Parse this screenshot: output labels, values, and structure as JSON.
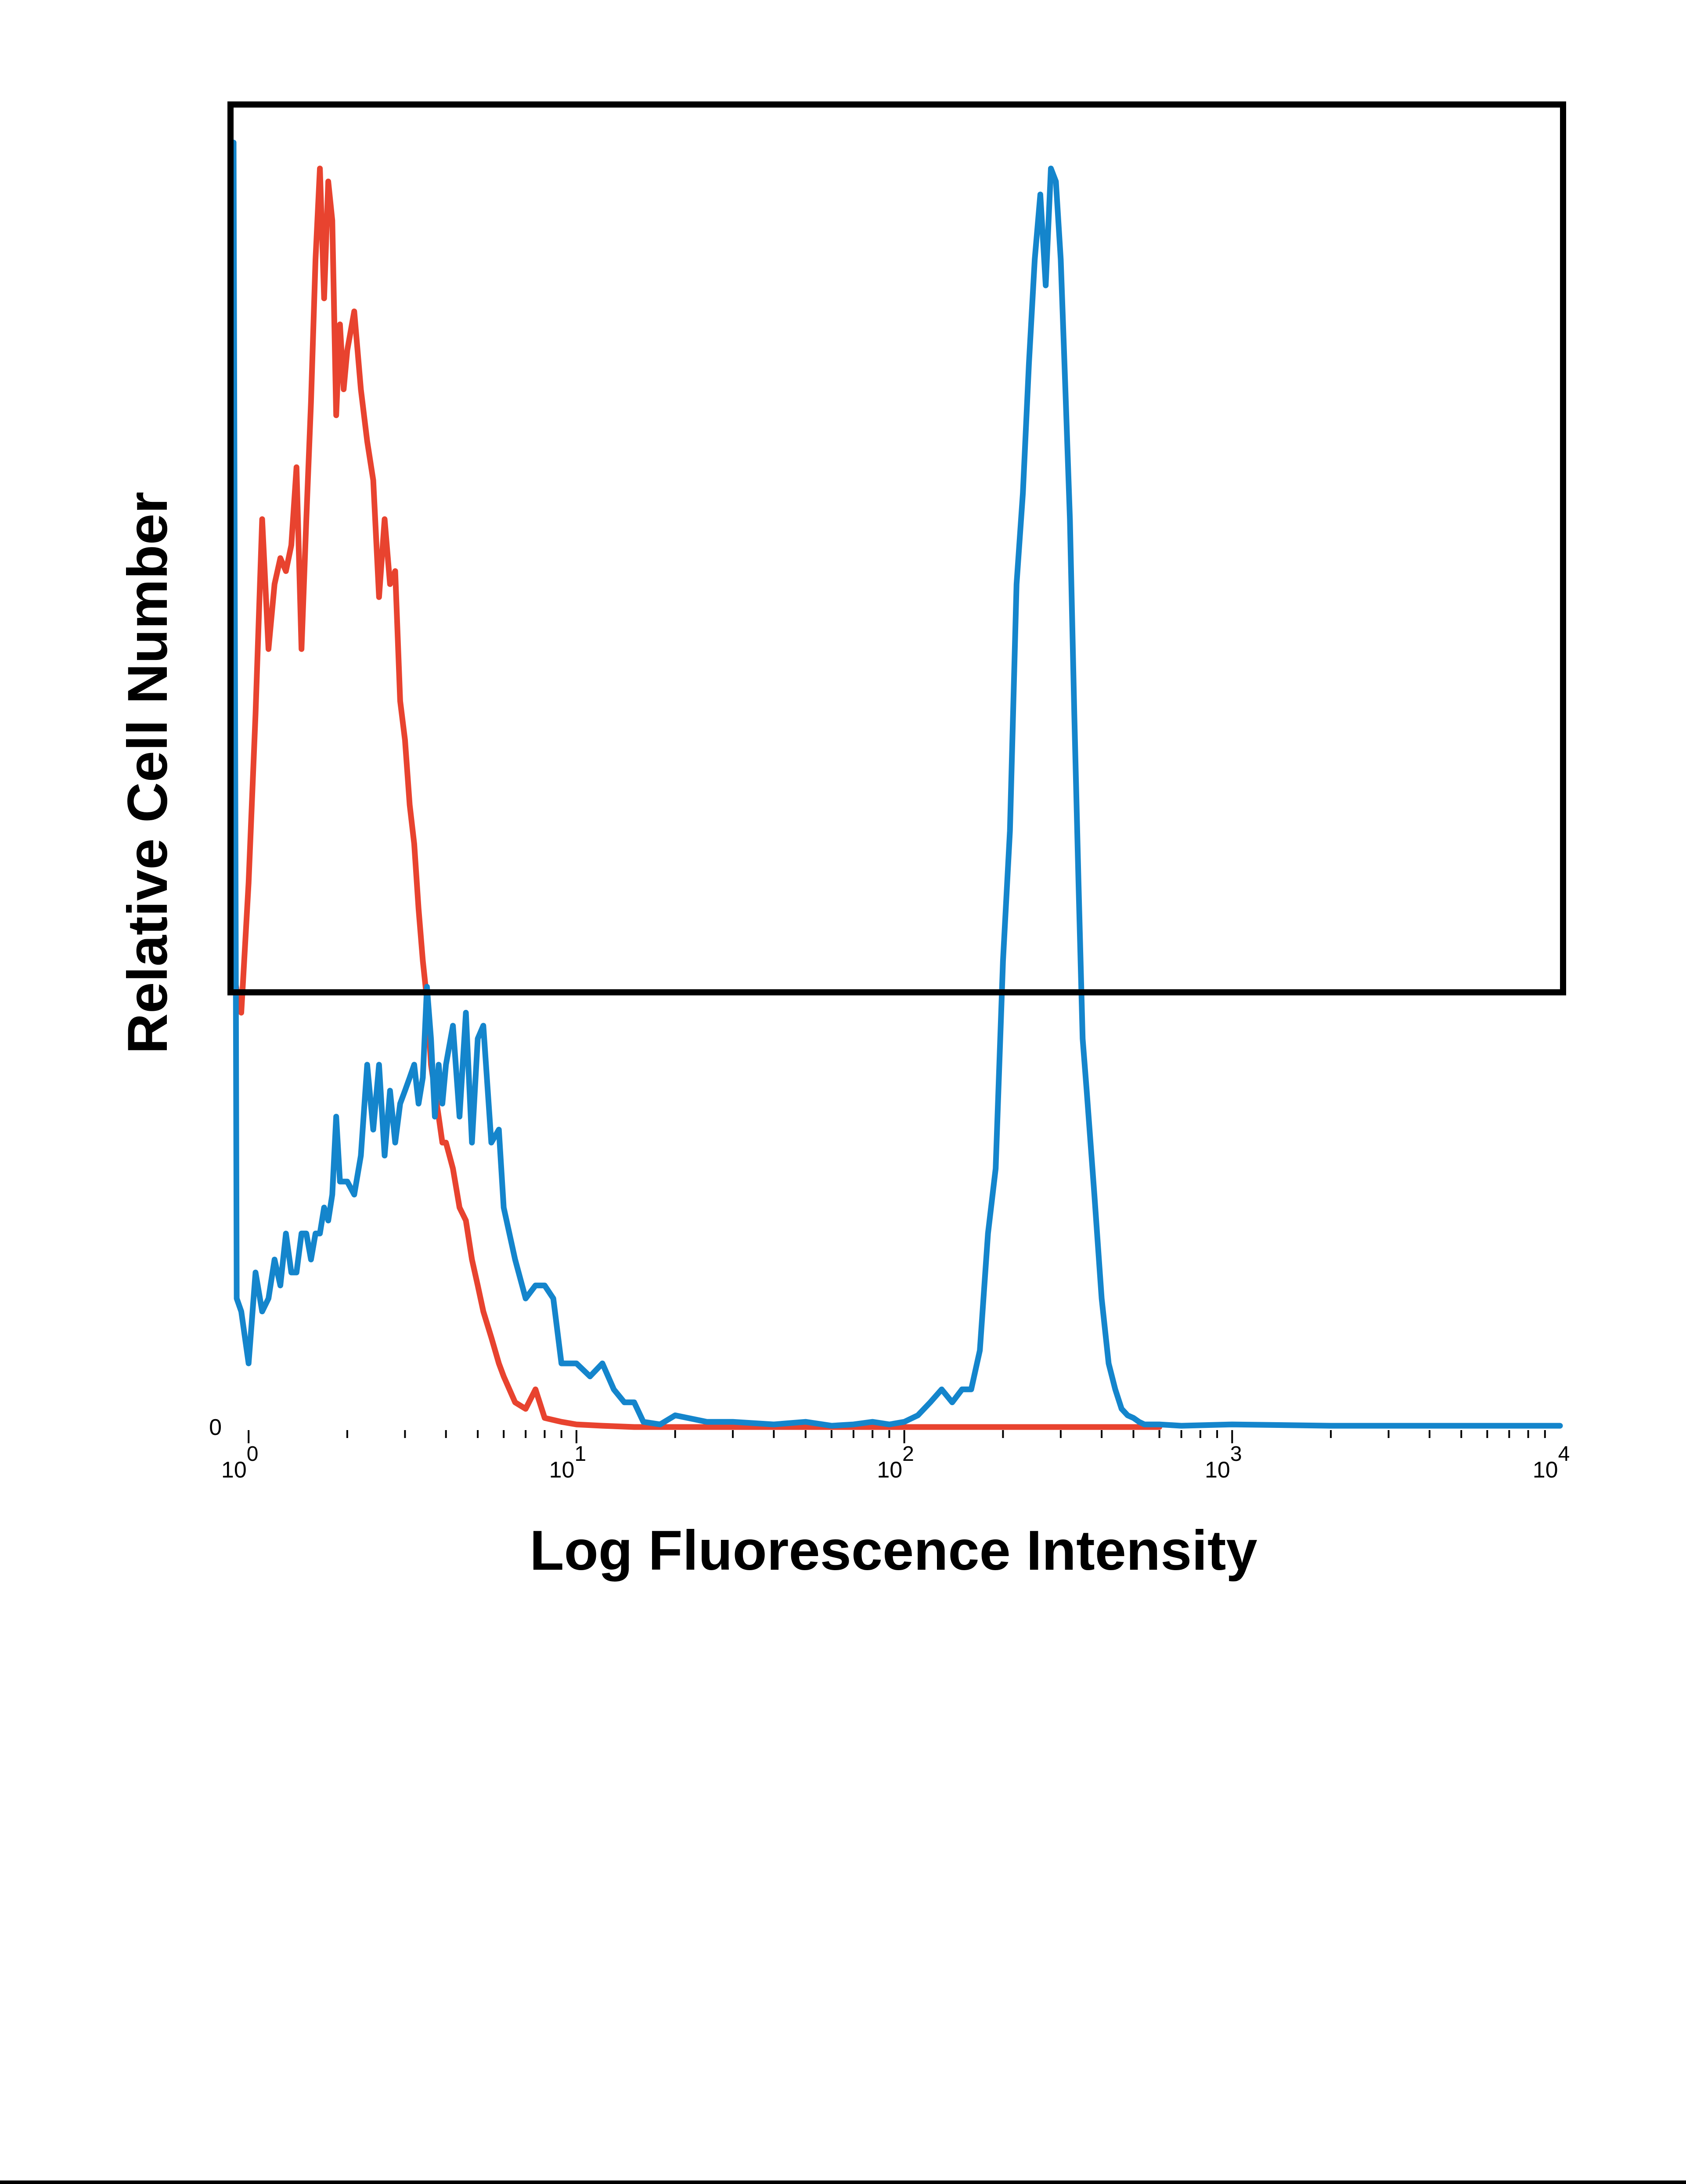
{
  "chart_data": {
    "type": "line",
    "title": "",
    "xlabel": "Log Fluorescence Intensity",
    "ylabel": "Relative Cell Number",
    "x_scale": "log",
    "xlim": [
      0.9,
      10000
    ],
    "ylim": [
      0,
      100
    ],
    "grid": false,
    "legend": "none",
    "x_ticks": [
      {
        "base": "10",
        "exp": "0",
        "value": 1
      },
      {
        "base": "10",
        "exp": "1",
        "value": 10
      },
      {
        "base": "10",
        "exp": "2",
        "value": 100
      },
      {
        "base": "10",
        "exp": "3",
        "value": 1000
      },
      {
        "base": "10",
        "exp": "4",
        "value": 10000
      }
    ],
    "y_tick_label": "0",
    "series": [
      {
        "color": "#e8432f",
        "x": [
          0.9,
          0.95,
          1.0,
          1.05,
          1.1,
          1.15,
          1.2,
          1.25,
          1.3,
          1.35,
          1.4,
          1.45,
          1.5,
          1.55,
          1.6,
          1.65,
          1.7,
          1.75,
          1.8,
          1.85,
          1.9,
          1.95,
          2.0,
          2.1,
          2.2,
          2.3,
          2.4,
          2.5,
          2.6,
          2.7,
          2.8,
          2.9,
          3.0,
          3.1,
          3.2,
          3.3,
          3.4,
          3.5,
          3.6,
          3.7,
          3.8,
          3.9,
          4.0,
          4.2,
          4.4,
          4.6,
          4.8,
          5.0,
          5.2,
          5.5,
          5.8,
          6.0,
          6.5,
          7.0,
          7.5,
          8.0,
          9.0,
          10.0,
          12.0,
          15.0,
          20.0,
          50.0,
          100.0,
          200.0,
          500.0,
          600.0
        ],
        "y": [
          35,
          32,
          42,
          55,
          70,
          60,
          65,
          67,
          66,
          68,
          74,
          60,
          70,
          79,
          90,
          97,
          87,
          96,
          93,
          78,
          85,
          80,
          83,
          86,
          80,
          76,
          73,
          64,
          70,
          65,
          66,
          56,
          53,
          48,
          45,
          40,
          36,
          33,
          28,
          26,
          24,
          22,
          22,
          20,
          17,
          16,
          13,
          11,
          9,
          7,
          5,
          4,
          2,
          1.5,
          3,
          0.8,
          0.5,
          0.3,
          0.2,
          0.1,
          0.1,
          0.1,
          0.1,
          0.1,
          0.1,
          0.1
        ]
      },
      {
        "color": "#1485cc",
        "x": [
          0.9,
          0.92,
          0.95,
          1.0,
          1.05,
          1.1,
          1.15,
          1.2,
          1.25,
          1.3,
          1.35,
          1.4,
          1.45,
          1.5,
          1.55,
          1.6,
          1.65,
          1.7,
          1.75,
          1.8,
          1.85,
          1.9,
          1.95,
          2.0,
          2.1,
          2.2,
          2.3,
          2.4,
          2.5,
          2.6,
          2.7,
          2.8,
          2.9,
          3.0,
          3.1,
          3.2,
          3.3,
          3.4,
          3.5,
          3.6,
          3.7,
          3.8,
          3.9,
          4.0,
          4.2,
          4.4,
          4.6,
          4.8,
          5.0,
          5.2,
          5.5,
          5.8,
          6.0,
          6.5,
          7.0,
          7.5,
          8.0,
          8.5,
          9.0,
          9.5,
          10.0,
          11.0,
          12.0,
          13.0,
          14.0,
          15.0,
          16.0,
          18.0,
          20.0,
          25.0,
          30.0,
          40.0,
          50.0,
          60.0,
          70.0,
          80.0,
          90.0,
          100.0,
          110.0,
          120.0,
          130.0,
          140.0,
          150.0,
          160.0,
          170.0,
          180.0,
          190.0,
          200.0,
          210.0,
          220.0,
          230.0,
          240.0,
          250.0,
          260.0,
          270.0,
          280.0,
          290.0,
          300.0,
          310.0,
          320.0,
          330.0,
          340.0,
          350.0,
          360.0,
          380.0,
          400.0,
          420.0,
          440.0,
          460.0,
          480.0,
          500.0,
          520.0,
          540.0,
          560.0,
          600.0,
          700.0,
          1000.0,
          2000.0,
          10000.0
        ],
        "y": [
          99,
          10,
          9,
          5,
          12,
          9,
          10,
          13,
          11,
          15,
          12,
          12,
          15,
          15,
          13,
          15,
          15,
          17,
          16,
          18,
          24,
          19,
          19,
          19,
          18,
          21,
          28,
          23,
          28,
          21,
          26,
          22,
          25,
          26,
          27,
          28,
          25,
          27,
          34,
          30,
          24,
          28,
          25,
          28,
          31,
          24,
          32,
          22,
          30,
          31,
          22,
          23,
          17,
          13,
          10,
          11,
          11,
          10,
          5,
          5,
          5,
          4,
          5,
          3,
          2,
          2,
          0.5,
          0.3,
          1,
          0.5,
          0.5,
          0.3,
          0.5,
          0.2,
          0.3,
          0.5,
          0.3,
          0.5,
          1,
          2,
          3,
          2,
          3,
          3,
          6,
          15,
          20,
          36,
          46,
          65,
          72,
          82,
          90,
          95,
          88,
          97,
          96,
          90,
          80,
          70,
          55,
          42,
          30,
          26,
          18,
          10,
          5,
          3,
          1.5,
          1,
          0.8,
          0.5,
          0.3,
          0.3,
          0.3,
          0.2,
          0.3,
          0.2,
          0.2
        ]
      }
    ]
  }
}
